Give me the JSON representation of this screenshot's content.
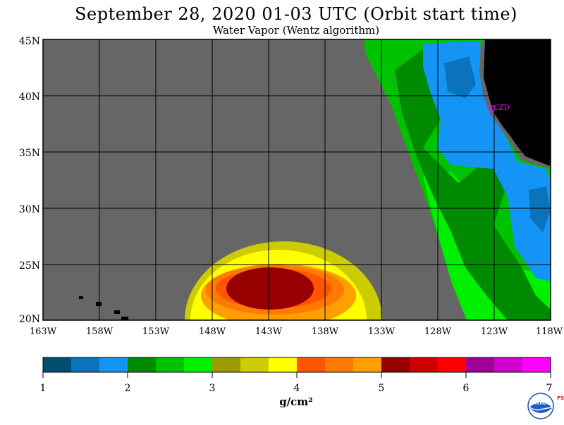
{
  "header": {
    "title": "September 28, 2020  01-03 UTC  (Orbit start time)",
    "subtitle": "Water Vapor (Wentz algorithm)"
  },
  "map": {
    "lat_labels": [
      "45N",
      "40N",
      "35N",
      "30N",
      "25N",
      "20N"
    ],
    "lon_labels": [
      "163W",
      "158W",
      "153W",
      "148W",
      "143W",
      "138W",
      "133W",
      "128W",
      "123W",
      "118W"
    ],
    "lat_range": [
      20,
      45
    ],
    "lon_range": [
      -163,
      -118
    ],
    "station_label": "CZD",
    "colors": {
      "no_data": "#666666",
      "land": "#000000",
      "grid": "#000000",
      "station": "#ff00ff"
    }
  },
  "colorbar": {
    "tick_labels": [
      "1",
      "2",
      "3",
      "4",
      "5",
      "6",
      "7"
    ],
    "unit": "g/cm²",
    "colors": [
      "#024e72",
      "#0a73bc",
      "#1495f5",
      "#008a00",
      "#00c200",
      "#00f000",
      "#9b9b00",
      "#cccc00",
      "#ffff00",
      "#ff5500",
      "#ff7a00",
      "#ff9f00",
      "#960000",
      "#cc0000",
      "#ff0000",
      "#a00096",
      "#d000d0",
      "#ff00ff"
    ]
  },
  "branding": {
    "logo_text": "NOAA",
    "side_text": "PSL"
  }
}
